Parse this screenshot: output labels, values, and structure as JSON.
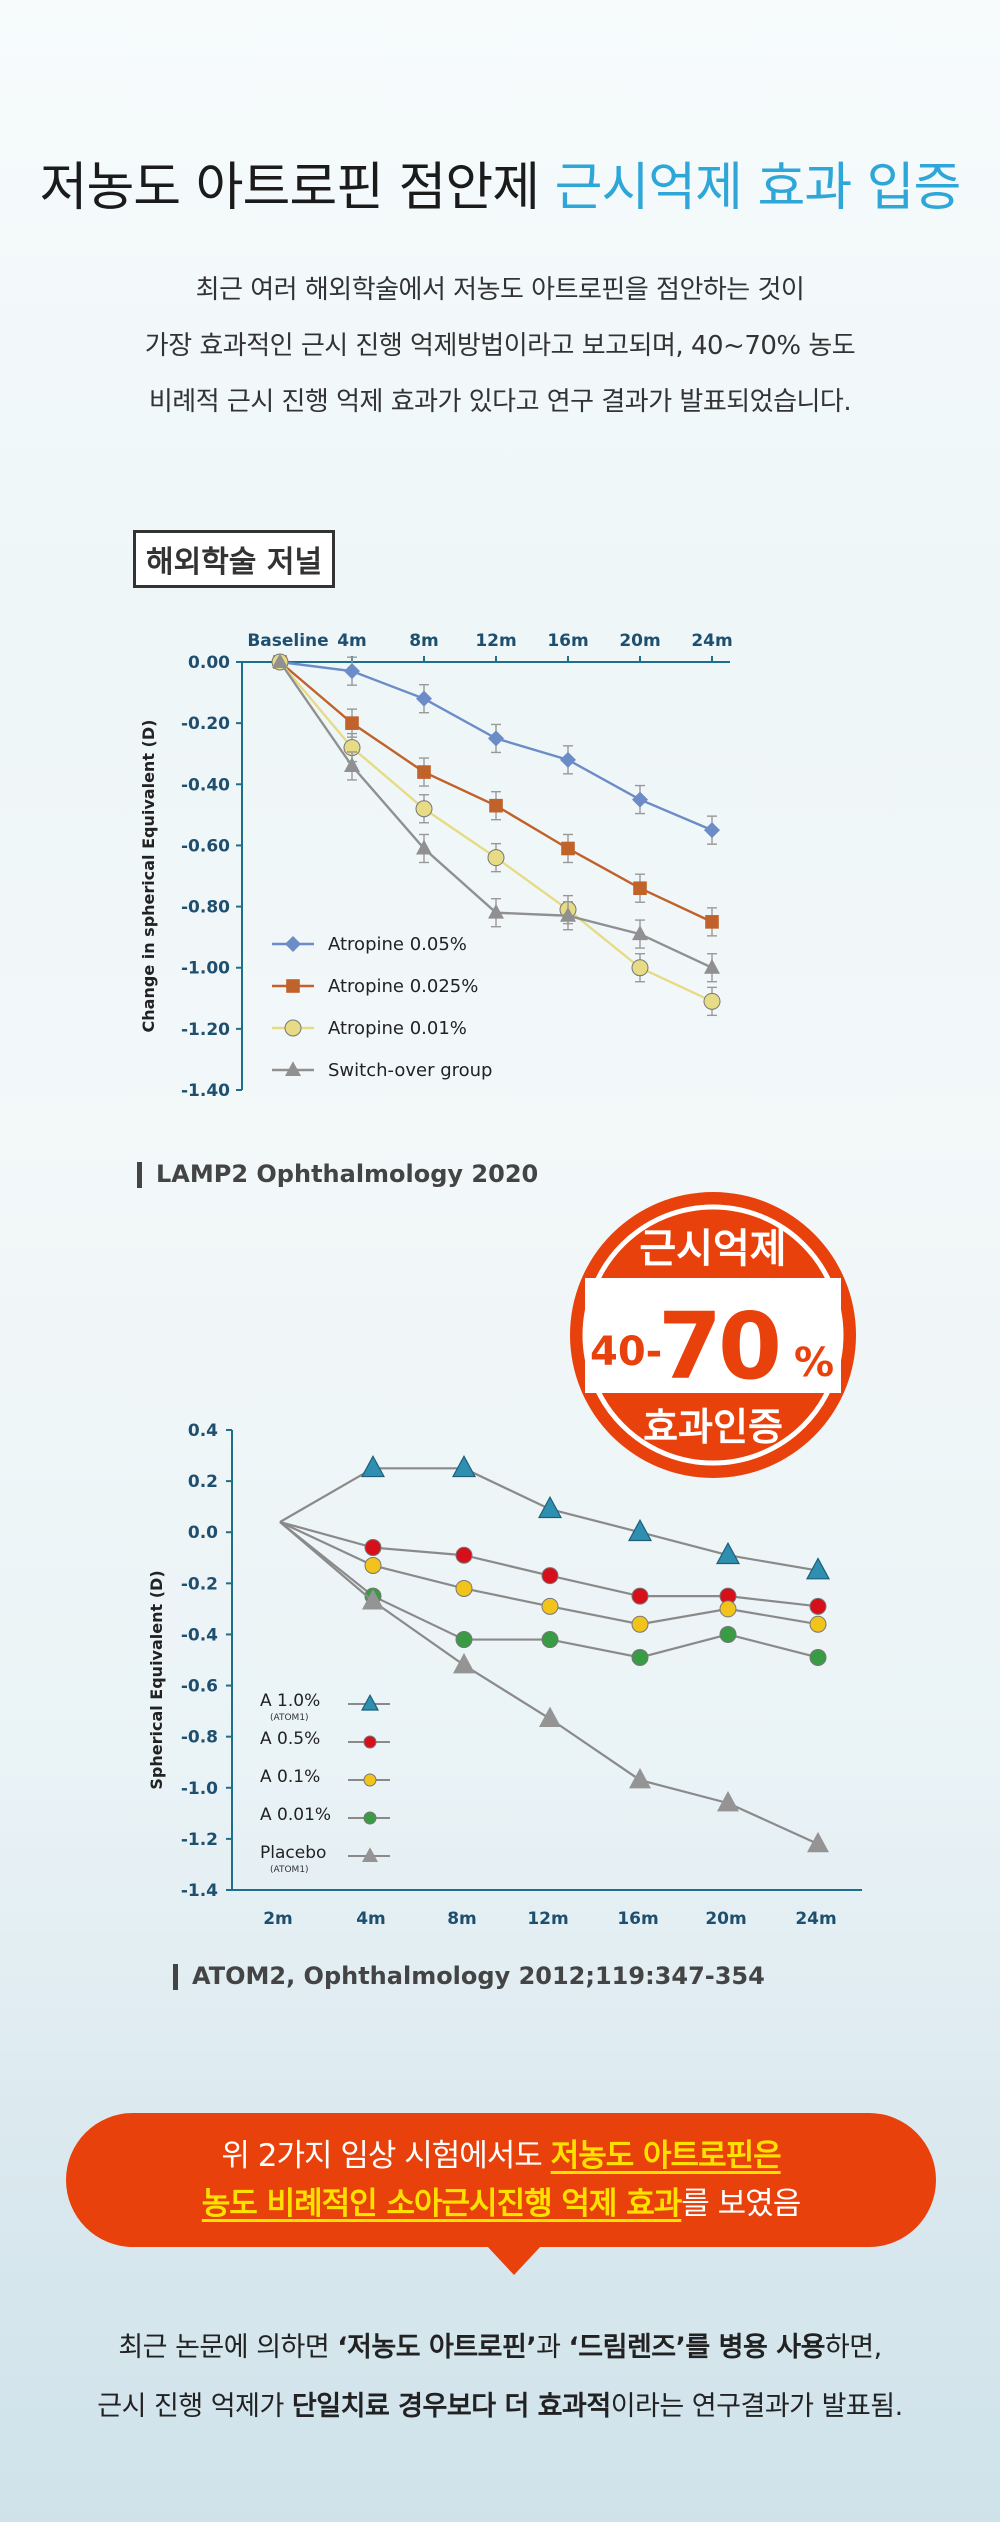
{
  "title": {
    "part1": "저농도 아트로핀 점안제",
    "part2": "근시억제 효과 입증"
  },
  "intro": [
    "최근 여러 해외학술에서 저농도 아트로핀을 점안하는 것이",
    "가장 효과적인 근시 진행 억제방법이라고 보고되며, 40~70% 농도",
    "비례적 근시 진행 억제 효과가 있다고 연구 결과가 발표되었습니다."
  ],
  "section_label": "해외학술 저널",
  "stamp": {
    "top": "근시억제",
    "prefix": "40-",
    "big": "70",
    "percent": "%",
    "bottom": "효과인증"
  },
  "chart_data": [
    {
      "type": "line",
      "x": [
        "Baseline",
        "4m",
        "8m",
        "12m",
        "16m",
        "20m",
        "24m"
      ],
      "xlabel": "",
      "ylabel": "Change in spherical Equivalent (D)",
      "ylim": [
        -1.4,
        0.0
      ],
      "yticks": [
        "0.00",
        "-0.20",
        "-0.40",
        "-0.60",
        "-0.80",
        "-1.00",
        "-1.20",
        "-1.40"
      ],
      "error_bars": true,
      "legend_position": "bottom-left",
      "series": [
        {
          "name": "Atropine 0.05%",
          "marker": "diamond",
          "color": "#6b8cc7",
          "x": [
            0,
            2,
            4,
            6,
            8,
            10,
            12
          ],
          "values": [
            0.0,
            -0.03,
            -0.12,
            -0.25,
            -0.32,
            -0.45,
            -0.55
          ]
        },
        {
          "name": "Atropine 0.025%",
          "marker": "square",
          "color": "#c0622a",
          "x": [
            0,
            2,
            4,
            6,
            8,
            10,
            12
          ],
          "values": [
            0.0,
            -0.2,
            -0.36,
            -0.47,
            -0.61,
            -0.74,
            -0.85
          ]
        },
        {
          "name": "Atropine 0.01%",
          "marker": "circle",
          "color": "#e7db85",
          "x": [
            0,
            2,
            4,
            6,
            8,
            10,
            12
          ],
          "values": [
            0.0,
            -0.28,
            -0.48,
            -0.64,
            -0.81,
            -1.0,
            -1.11
          ]
        },
        {
          "name": "Switch-over group",
          "marker": "triangle",
          "color": "#909090",
          "x": [
            0,
            2,
            4,
            6,
            8,
            10,
            12
          ],
          "values": [
            0.0,
            -0.34,
            -0.61,
            -0.82,
            -0.83,
            -0.89,
            -1.0
          ]
        }
      ]
    },
    {
      "type": "line",
      "x": [
        "2m",
        "4m",
        "8m",
        "12m",
        "16m",
        "20m",
        "24m"
      ],
      "xlabel": "",
      "ylabel": "Spherical Equivalent (D)",
      "ylim": [
        -1.4,
        0.4
      ],
      "yticks": [
        "0.4",
        "0.2",
        "0.0",
        "-0.2",
        "-0.4",
        "-0.6",
        "-0.8",
        "-1.0",
        "-1.2",
        "-1.4"
      ],
      "legend_position": "bottom-left",
      "series": [
        {
          "name": "A 1.0%",
          "note": "(ATOM1)",
          "marker": "triangle",
          "color": "#2f8fb0",
          "values": [
            0.04,
            0.25,
            0.25,
            0.09,
            0.0,
            -0.09,
            -0.15
          ]
        },
        {
          "name": "A 0.5%",
          "marker": "circle",
          "color": "#d6101b",
          "values": [
            0.04,
            -0.06,
            -0.09,
            -0.17,
            -0.25,
            -0.25,
            -0.29
          ]
        },
        {
          "name": "A 0.1%",
          "marker": "circle",
          "color": "#f2c31a",
          "values": [
            0.04,
            -0.13,
            -0.22,
            -0.29,
            -0.36,
            -0.3,
            -0.36
          ]
        },
        {
          "name": "A 0.01%",
          "marker": "circle",
          "color": "#3a9b45",
          "values": [
            0.04,
            -0.25,
            -0.42,
            -0.42,
            -0.49,
            -0.4,
            -0.49
          ]
        },
        {
          "name": "Placebo",
          "note": "(ATOM1)",
          "marker": "triangle",
          "color": "#949494",
          "values": [
            0.04,
            -0.27,
            -0.52,
            -0.73,
            -0.97,
            -1.06,
            -1.22
          ]
        }
      ]
    }
  ],
  "sources": [
    "LAMP2 Ophthalmology 2020",
    "ATOM2, Ophthalmology 2012;119:347-354"
  ],
  "callout": {
    "line1_pre": "위 2가지 임상 시험에서도 ",
    "line1_hl": "저농도 아트로핀은",
    "line2_hl": "농도 비례적인 소아근시진행 억제 효과",
    "line2_post": "를 보였음"
  },
  "bottom": {
    "l1_a": "최근 논문에 의하면 ",
    "l1_b": "‘저농도 아트로핀’",
    "l1_c": "과 ",
    "l1_d": "‘드림렌즈’를 병용 사용",
    "l1_e": "하면,",
    "l2_a": "근시 진행 억제가 ",
    "l2_b": "단일치료 경우보다 더 효과적",
    "l2_c": "이라는 연구결과가 발표됨."
  }
}
